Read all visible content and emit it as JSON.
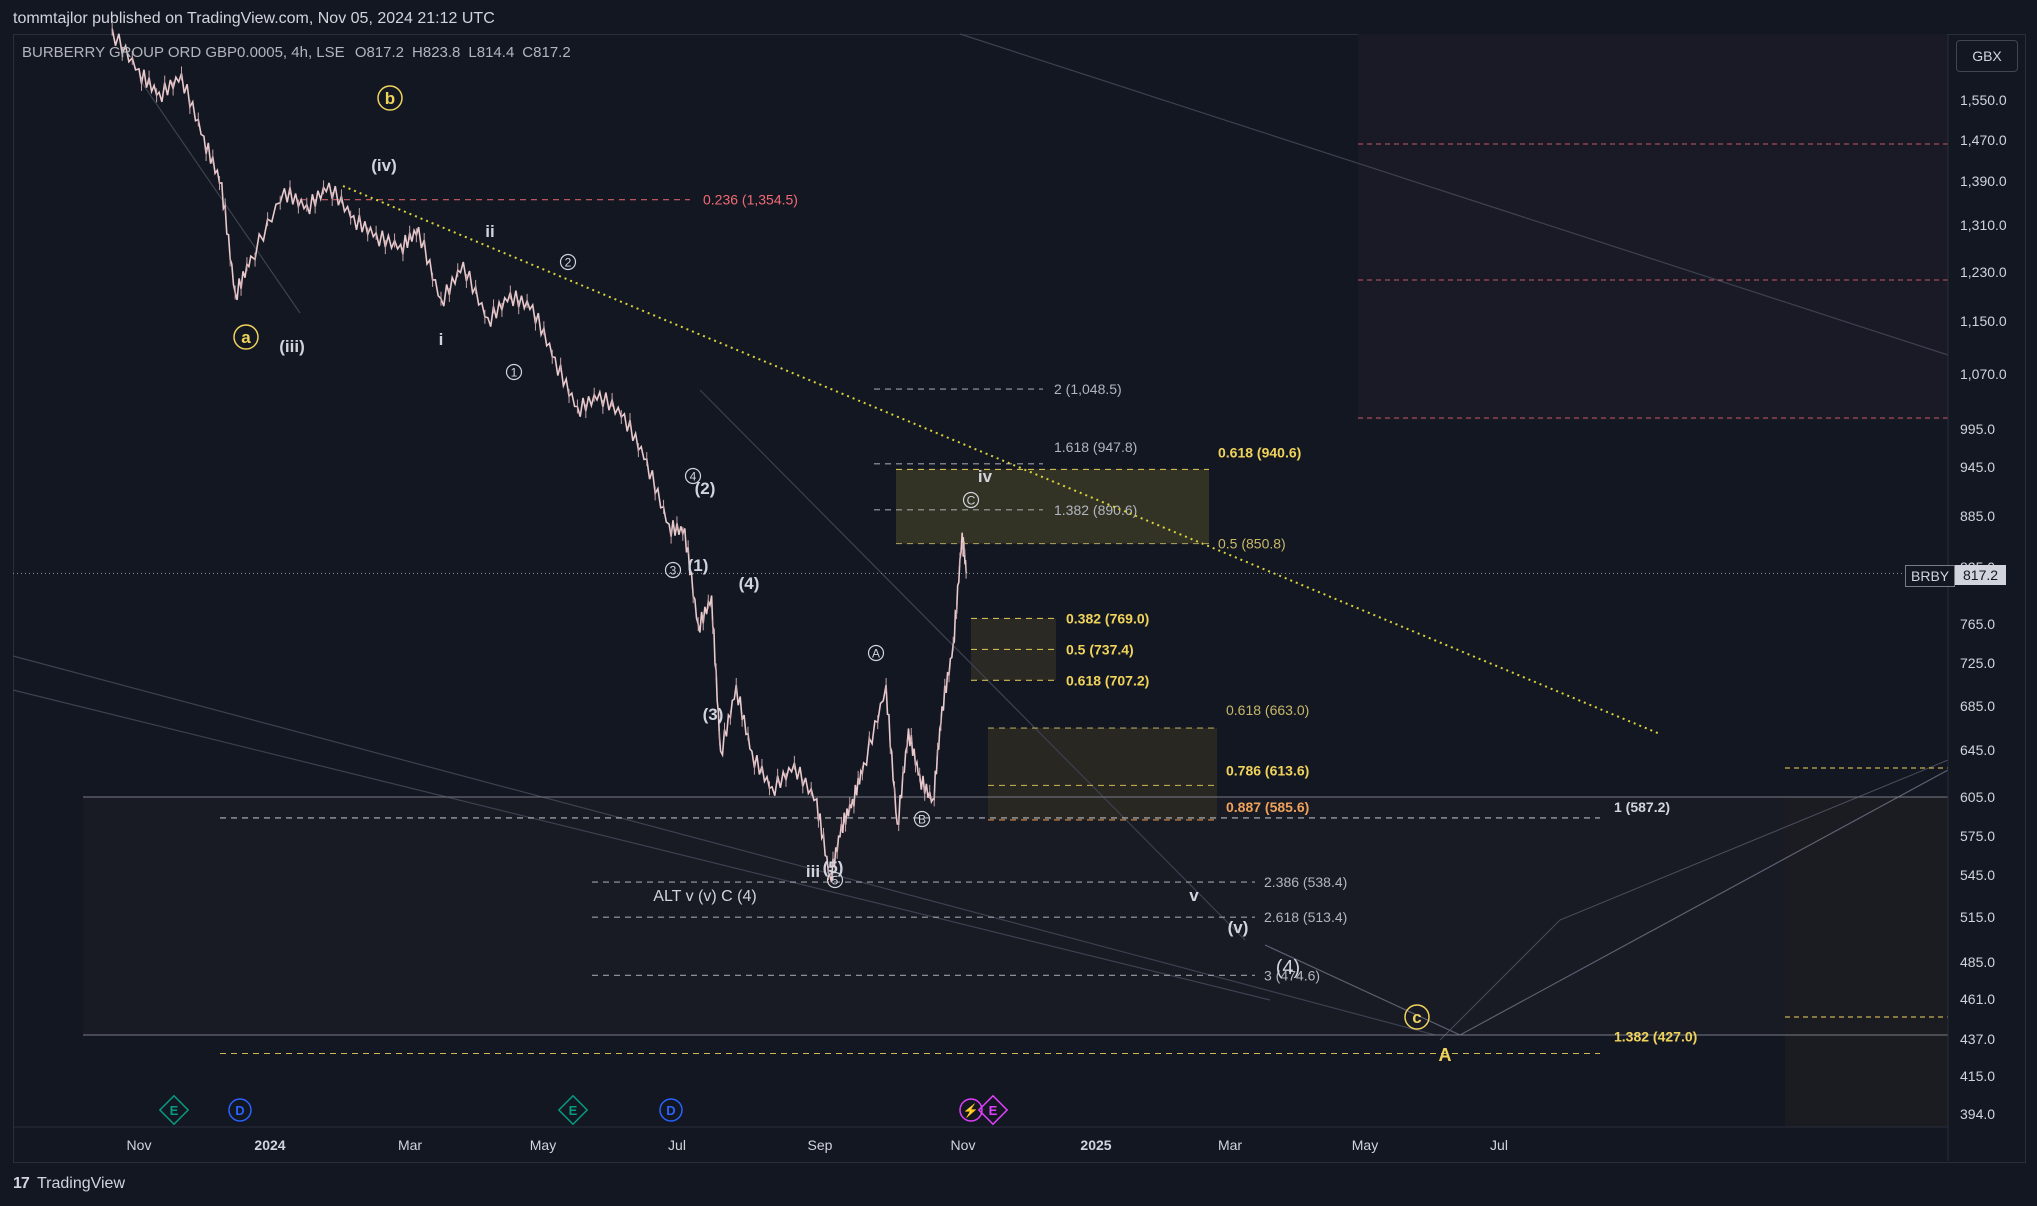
{
  "header": {
    "publish_line": "tommtajlor published on TradingView.com, Nov 05, 2024 21:12 UTC",
    "symbol_name": "BURBERRY GROUP ORD GBP0.0005, 4h, LSE",
    "ohlc": [
      {
        "k": "O",
        "v": "817.2"
      },
      {
        "k": "H",
        "v": "823.8"
      },
      {
        "k": "L",
        "v": "814.4"
      },
      {
        "k": "C",
        "v": "817.2"
      }
    ],
    "currency": "GBX"
  },
  "price_tag": {
    "symbol": "BRBY",
    "value": "817.2"
  },
  "footer": {
    "brand": "TradingView",
    "logo_glyph": "17"
  },
  "colors": {
    "background": "#131722",
    "candle": "#e8c9cc",
    "fib_yellow": "#f0d35b",
    "fib_orange": "#f0a25b",
    "fib_red": "#f06a74",
    "grey": "#b2b5be",
    "trend": "#d9d23a"
  },
  "chart_data": {
    "type": "line",
    "timeframe": "4h",
    "series": [
      {
        "name": "",
        "x": [
          "2023-10-20",
          "2023-11-01",
          "2023-11-10",
          "2023-11-20",
          "2023-11-30",
          "2023-12-08",
          "2023-12-14",
          "2023-12-21",
          "2024-01-05",
          "2024-01-15",
          "2024-01-25",
          "2024-02-05",
          "2024-02-15",
          "2024-02-26",
          "2024-03-05",
          "2024-03-15",
          "2024-03-25",
          "2024-04-05",
          "2024-04-15",
          "2024-04-25",
          "2024-05-05",
          "2024-05-15",
          "2024-05-25",
          "2024-06-05",
          "2024-06-15",
          "2024-06-25",
          "2024-07-02",
          "2024-07-08",
          "2024-07-14",
          "2024-07-18",
          "2024-07-25",
          "2024-08-01",
          "2024-08-10",
          "2024-08-20",
          "2024-08-30",
          "2024-09-05",
          "2024-09-10",
          "2024-09-15",
          "2024-09-20",
          "2024-09-30",
          "2024-10-05",
          "2024-10-10",
          "2024-10-15",
          "2024-10-21",
          "2024-10-25",
          "2024-10-30",
          "2024-11-03",
          "2024-11-05"
        ],
        "y": [
          1700,
          1610,
          1560,
          1600,
          1470,
          1380,
          1190,
          1250,
          1370,
          1340,
          1380,
          1320,
          1290,
          1270,
          1300,
          1180,
          1240,
          1150,
          1190,
          1170,
          1090,
          1020,
          1040,
          1010,
          950,
          870,
          865,
          760,
          790,
          640,
          700,
          640,
          610,
          630,
          600,
          540,
          580,
          600,
          630,
          700,
          580,
          660,
          620,
          600,
          680,
          740,
          860,
          817.2
        ]
      }
    ],
    "x_tick_labels": [
      "Nov",
      "2024",
      "Mar",
      "May",
      "Jul",
      "Sep",
      "Nov",
      "2025",
      "Mar",
      "May",
      "Jul"
    ],
    "y_tick_labels": [
      "1,550.0",
      "1,470.0",
      "1,390.0",
      "1,310.0",
      "1,230.0",
      "1,150.0",
      "1,070.0",
      "995.0",
      "945.0",
      "885.0",
      "765.0",
      "725.0",
      "685.0",
      "645.0",
      "605.0",
      "575.0",
      "545.0",
      "515.0",
      "485.0",
      "461.0",
      "437.0",
      "415.0",
      "394.0"
    ],
    "ylim": [
      394,
      1600
    ],
    "last_price": 817.2,
    "fib_levels": [
      {
        "label": "0.236 (1,354.5)",
        "value": 1354.5,
        "color": "#f06a74"
      },
      {
        "label": "2 (1,048.5)",
        "value": 1048.5,
        "color": "#b2b5be"
      },
      {
        "label": "1.618 (947.8)",
        "value": 947.8,
        "color": "#b2b5be"
      },
      {
        "label": "1.382 (890.6)",
        "value": 890.6,
        "color": "#b2b5be"
      },
      {
        "label": "0.618 (940.6)",
        "value": 940.6,
        "color": "#f0d35b"
      },
      {
        "label": "0.5 (850.8)",
        "value": 850.8,
        "color": "#c8b86a"
      },
      {
        "label": "0.382 (769.0)",
        "value": 769.0,
        "color": "#f0d35b"
      },
      {
        "label": "0.5 (737.4)",
        "value": 737.4,
        "color": "#f0d35b"
      },
      {
        "label": "0.618 (707.2)",
        "value": 707.2,
        "color": "#f0d35b"
      },
      {
        "label": "0.618 (663.0)",
        "value": 663.0,
        "color": "#c8b86a"
      },
      {
        "label": "0.786 (613.6)",
        "value": 613.6,
        "color": "#f0d35b"
      },
      {
        "label": "0.887 (585.6)",
        "value": 585.6,
        "color": "#f0a25b"
      },
      {
        "label": "1 (587.2)",
        "value": 587.2,
        "color": "#d1d4dc"
      },
      {
        "label": "2.386 (538.4)",
        "value": 538.4,
        "color": "#b2b5be"
      },
      {
        "label": "2.618 (513.4)",
        "value": 513.4,
        "color": "#b2b5be"
      },
      {
        "label": "3 (474.6)",
        "value": 474.6,
        "color": "#b2b5be"
      },
      {
        "label": "1.382 (427.0)",
        "value": 427.0,
        "color": "#f0d35b"
      }
    ],
    "wave_labels": [
      {
        "text": "b",
        "style": "circle-yellow"
      },
      {
        "text": "a",
        "style": "circle-yellow"
      },
      {
        "text": "(iv)",
        "style": "plain"
      },
      {
        "text": "(iii)",
        "style": "plain"
      },
      {
        "text": "ii",
        "style": "plain"
      },
      {
        "text": "i",
        "style": "plain"
      },
      {
        "text": "2",
        "style": "circle"
      },
      {
        "text": "1",
        "style": "circle"
      },
      {
        "text": "4",
        "style": "circle"
      },
      {
        "text": "(2)",
        "style": "plain"
      },
      {
        "text": "3",
        "style": "circle"
      },
      {
        "text": "(1)",
        "style": "plain"
      },
      {
        "text": "(4)",
        "style": "plain"
      },
      {
        "text": "(3)",
        "style": "plain"
      },
      {
        "text": "iii",
        "style": "plain"
      },
      {
        "text": "(5)",
        "style": "plain"
      },
      {
        "text": "5",
        "style": "circle"
      },
      {
        "text": "A",
        "style": "circle"
      },
      {
        "text": "B",
        "style": "circle"
      },
      {
        "text": "C",
        "style": "circle"
      },
      {
        "text": "iv",
        "style": "plain"
      },
      {
        "text": "v",
        "style": "plain"
      },
      {
        "text": "(v)",
        "style": "plain"
      },
      {
        "text": "(4)",
        "style": "plain-large"
      },
      {
        "text": "c",
        "style": "circle-yellow"
      },
      {
        "text": "A",
        "style": "yellow"
      },
      {
        "text": "ALT v (v) C (4)",
        "style": "plain"
      }
    ],
    "events": [
      {
        "type": "E",
        "color": "#089981"
      },
      {
        "type": "D",
        "color": "#2962ff"
      },
      {
        "type": "E",
        "color": "#089981"
      },
      {
        "type": "D",
        "color": "#2962ff"
      },
      {
        "type": "⚡",
        "color": "#e040fb"
      },
      {
        "type": "E",
        "color": "#e040fb"
      }
    ]
  }
}
